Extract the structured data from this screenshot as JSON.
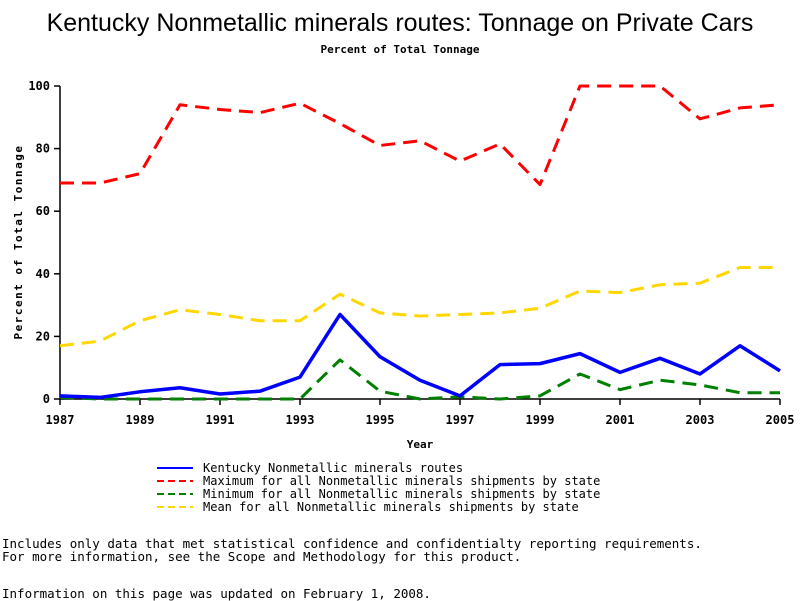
{
  "chart_data": {
    "type": "line",
    "title": "Kentucky Nonmetallic minerals routes: Tonnage on Private Cars",
    "subtitle": "Percent of Total Tonnage",
    "xlabel": "Year",
    "ylabel": "Percent of Total Tonnage",
    "xlim": [
      1987,
      2005
    ],
    "ylim": [
      0,
      100
    ],
    "x_ticks": [
      "1987",
      "1989",
      "1991",
      "1993",
      "1995",
      "1997",
      "1999",
      "2001",
      "2003",
      "2005"
    ],
    "y_ticks": [
      "0",
      "20",
      "40",
      "60",
      "80",
      "100"
    ],
    "grid": false,
    "legend_position": "bottom",
    "x": [
      1987,
      1988,
      1989,
      1990,
      1991,
      1992,
      1993,
      1994,
      1995,
      1996,
      1997,
      1998,
      1999,
      2000,
      2001,
      2002,
      2003,
      2004,
      2005
    ],
    "series": [
      {
        "name": "Kentucky Nonmetallic minerals routes",
        "color": "#0000ff",
        "dash": "solid",
        "values": [
          1,
          0.5,
          2.3,
          3.6,
          1.6,
          2.5,
          7,
          27,
          13.5,
          6,
          1,
          11,
          11.3,
          14.5,
          8.5,
          13,
          8,
          17,
          9
        ]
      },
      {
        "name": "Maximum for all Nonmetallic minerals shipments by state",
        "color": "#ff0000",
        "dash": "dashed",
        "values": [
          69,
          69,
          72,
          94,
          92.5,
          91.5,
          94.5,
          88,
          81,
          82.5,
          76,
          81.5,
          68.5,
          100,
          100,
          100,
          89.5,
          93,
          94
        ]
      },
      {
        "name": "Minimum for all Nonmetallic minerals shipments by state",
        "color": "#008000",
        "dash": "dashed",
        "values": [
          0.5,
          0,
          0,
          0,
          0,
          0,
          0,
          12.5,
          2.5,
          0,
          0.7,
          0,
          1,
          8,
          3,
          6,
          4.5,
          2,
          2
        ]
      },
      {
        "name": "Mean for all Nonmetallic minerals shipments by state",
        "color": "#ffd700",
        "dash": "dashed",
        "values": [
          17,
          18.5,
          25,
          28.5,
          27,
          25,
          25,
          33.5,
          27.5,
          26.5,
          27,
          27.5,
          29,
          34.5,
          34,
          36.5,
          37,
          42,
          42
        ]
      }
    ]
  },
  "notes": {
    "line1": "Includes only data that met statistical confidence and confidentialty reporting requirements.",
    "line2": "For more information, see the Scope and Methodology for this product.",
    "updated": "Information on this page was updated on February 1, 2008."
  }
}
